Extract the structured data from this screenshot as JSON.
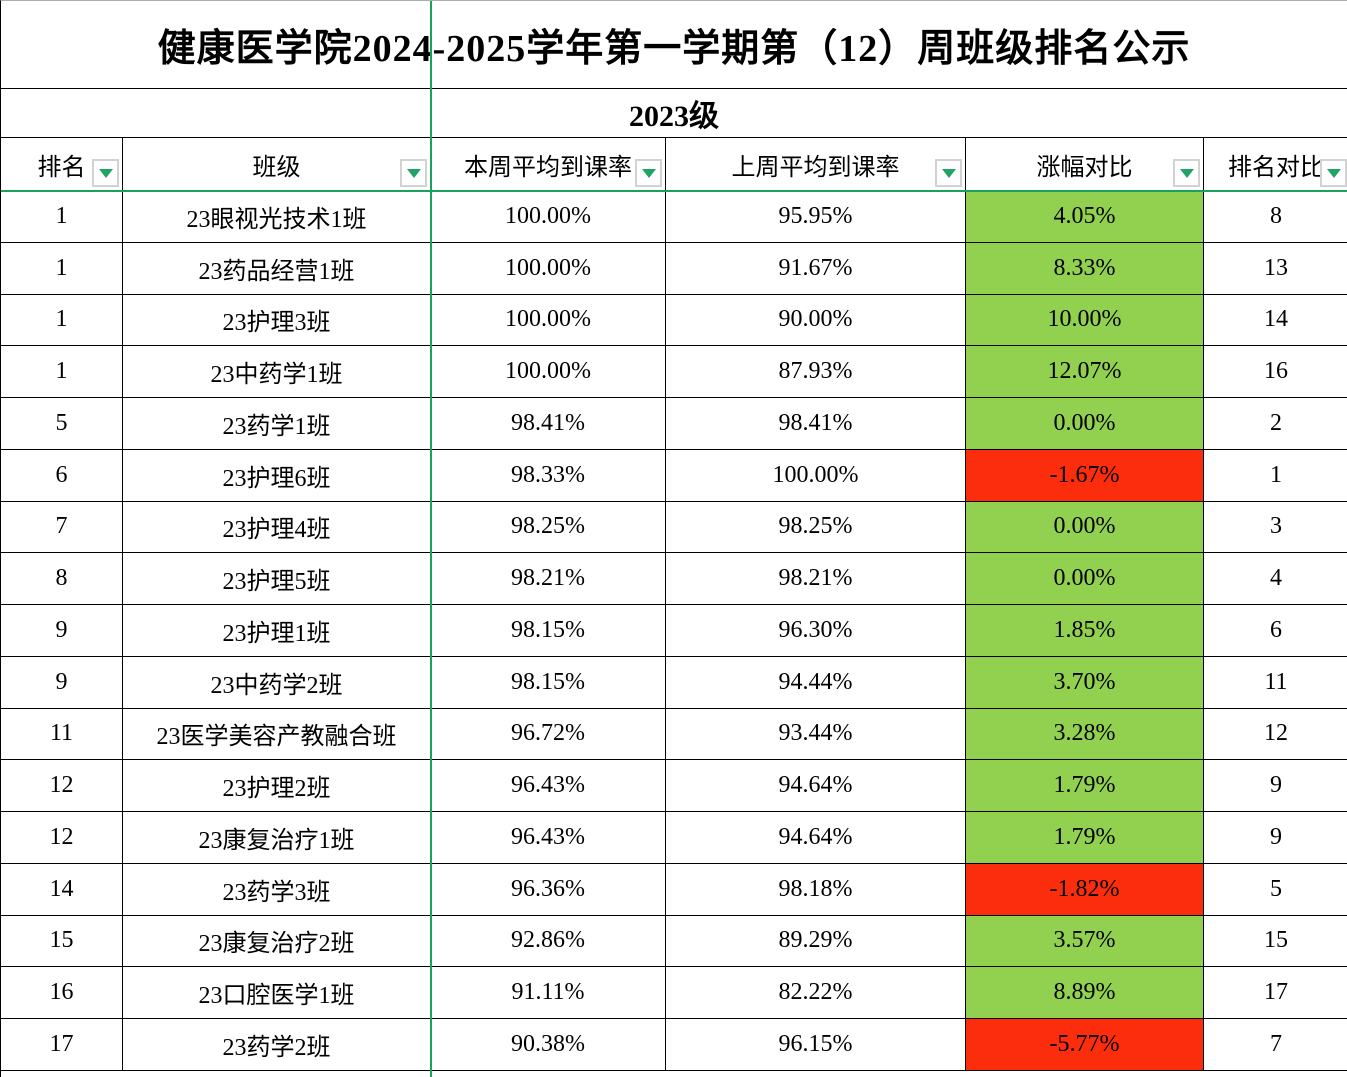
{
  "sheet": {
    "title": "健康医学院2024-2025学年第一学期第（12）周班级排名公示",
    "group_label": "2023级",
    "columns": [
      "排名",
      "班级",
      "本周平均到课率",
      "上周平均到课率",
      "涨幅对比",
      "排名对比"
    ],
    "rows": [
      {
        "rank": "1",
        "class_name": "23眼视光技术1班",
        "this_week": "100.00%",
        "last_week": "95.95%",
        "change": "4.05%",
        "trend": "up",
        "rank_compare": "8"
      },
      {
        "rank": "1",
        "class_name": "23药品经营1班",
        "this_week": "100.00%",
        "last_week": "91.67%",
        "change": "8.33%",
        "trend": "up",
        "rank_compare": "13"
      },
      {
        "rank": "1",
        "class_name": "23护理3班",
        "this_week": "100.00%",
        "last_week": "90.00%",
        "change": "10.00%",
        "trend": "up",
        "rank_compare": "14"
      },
      {
        "rank": "1",
        "class_name": "23中药学1班",
        "this_week": "100.00%",
        "last_week": "87.93%",
        "change": "12.07%",
        "trend": "up",
        "rank_compare": "16"
      },
      {
        "rank": "5",
        "class_name": "23药学1班",
        "this_week": "98.41%",
        "last_week": "98.41%",
        "change": "0.00%",
        "trend": "up",
        "rank_compare": "2"
      },
      {
        "rank": "6",
        "class_name": "23护理6班",
        "this_week": "98.33%",
        "last_week": "100.00%",
        "change": "-1.67%",
        "trend": "down",
        "rank_compare": "1"
      },
      {
        "rank": "7",
        "class_name": "23护理4班",
        "this_week": "98.25%",
        "last_week": "98.25%",
        "change": "0.00%",
        "trend": "up",
        "rank_compare": "3"
      },
      {
        "rank": "8",
        "class_name": "23护理5班",
        "this_week": "98.21%",
        "last_week": "98.21%",
        "change": "0.00%",
        "trend": "up",
        "rank_compare": "4"
      },
      {
        "rank": "9",
        "class_name": "23护理1班",
        "this_week": "98.15%",
        "last_week": "96.30%",
        "change": "1.85%",
        "trend": "up",
        "rank_compare": "6"
      },
      {
        "rank": "9",
        "class_name": "23中药学2班",
        "this_week": "98.15%",
        "last_week": "94.44%",
        "change": "3.70%",
        "trend": "up",
        "rank_compare": "11"
      },
      {
        "rank": "11",
        "class_name": "23医学美容产教融合班",
        "this_week": "96.72%",
        "last_week": "93.44%",
        "change": "3.28%",
        "trend": "up",
        "rank_compare": "12"
      },
      {
        "rank": "12",
        "class_name": "23护理2班",
        "this_week": "96.43%",
        "last_week": "94.64%",
        "change": "1.79%",
        "trend": "up",
        "rank_compare": "9"
      },
      {
        "rank": "12",
        "class_name": "23康复治疗1班",
        "this_week": "96.43%",
        "last_week": "94.64%",
        "change": "1.79%",
        "trend": "up",
        "rank_compare": "9"
      },
      {
        "rank": "14",
        "class_name": "23药学3班",
        "this_week": "96.36%",
        "last_week": "98.18%",
        "change": "-1.82%",
        "trend": "down",
        "rank_compare": "5"
      },
      {
        "rank": "15",
        "class_name": "23康复治疗2班",
        "this_week": "92.86%",
        "last_week": "89.29%",
        "change": "3.57%",
        "trend": "up",
        "rank_compare": "15"
      },
      {
        "rank": "16",
        "class_name": "23口腔医学1班",
        "this_week": "91.11%",
        "last_week": "82.22%",
        "change": "8.89%",
        "trend": "up",
        "rank_compare": "17"
      },
      {
        "rank": "17",
        "class_name": "23药学2班",
        "this_week": "90.38%",
        "last_week": "96.15%",
        "change": "-5.77%",
        "trend": "down",
        "rank_compare": "7"
      }
    ]
  },
  "colors": {
    "positive_fill": "#92D050",
    "negative_fill": "#FB2D0D",
    "freeze_line": "#1BA15E",
    "filter_arrow": "#21A366",
    "grid_line": "#000000"
  },
  "icons": {
    "filter_dropdown": "▼"
  }
}
